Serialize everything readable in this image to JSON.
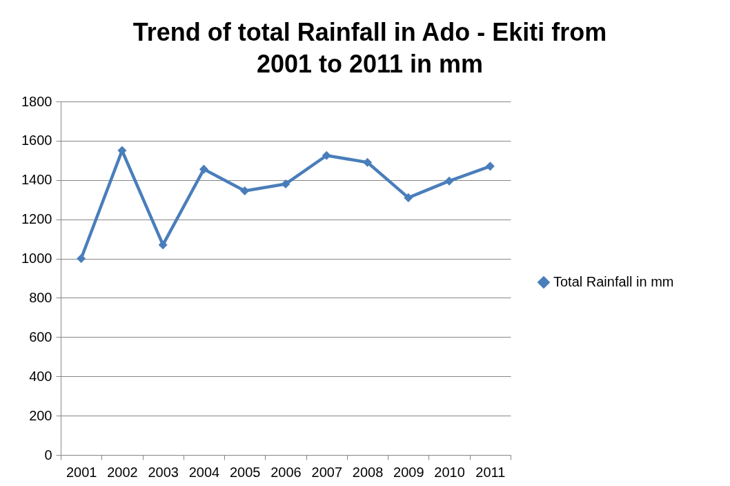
{
  "chart_data": {
    "type": "line",
    "title": "Trend of total Rainfall in Ado - Ekiti from 2001 to 2011 in mm",
    "categories": [
      "2001",
      "2002",
      "2003",
      "2004",
      "2005",
      "2006",
      "2007",
      "2008",
      "2009",
      "2010",
      "2011"
    ],
    "series": [
      {
        "name": "Total Rainfall in mm",
        "color": "#4a7ebb",
        "values": [
          1000,
          1550,
          1070,
          1455,
          1345,
          1380,
          1525,
          1490,
          1310,
          1395,
          1470
        ]
      }
    ],
    "ylim": [
      0,
      1800
    ],
    "yticks": [
      0,
      200,
      400,
      600,
      800,
      1000,
      1200,
      1400,
      1600,
      1800
    ],
    "grid": "y",
    "legend": "right",
    "marker": "diamond",
    "line_style": "solid"
  }
}
